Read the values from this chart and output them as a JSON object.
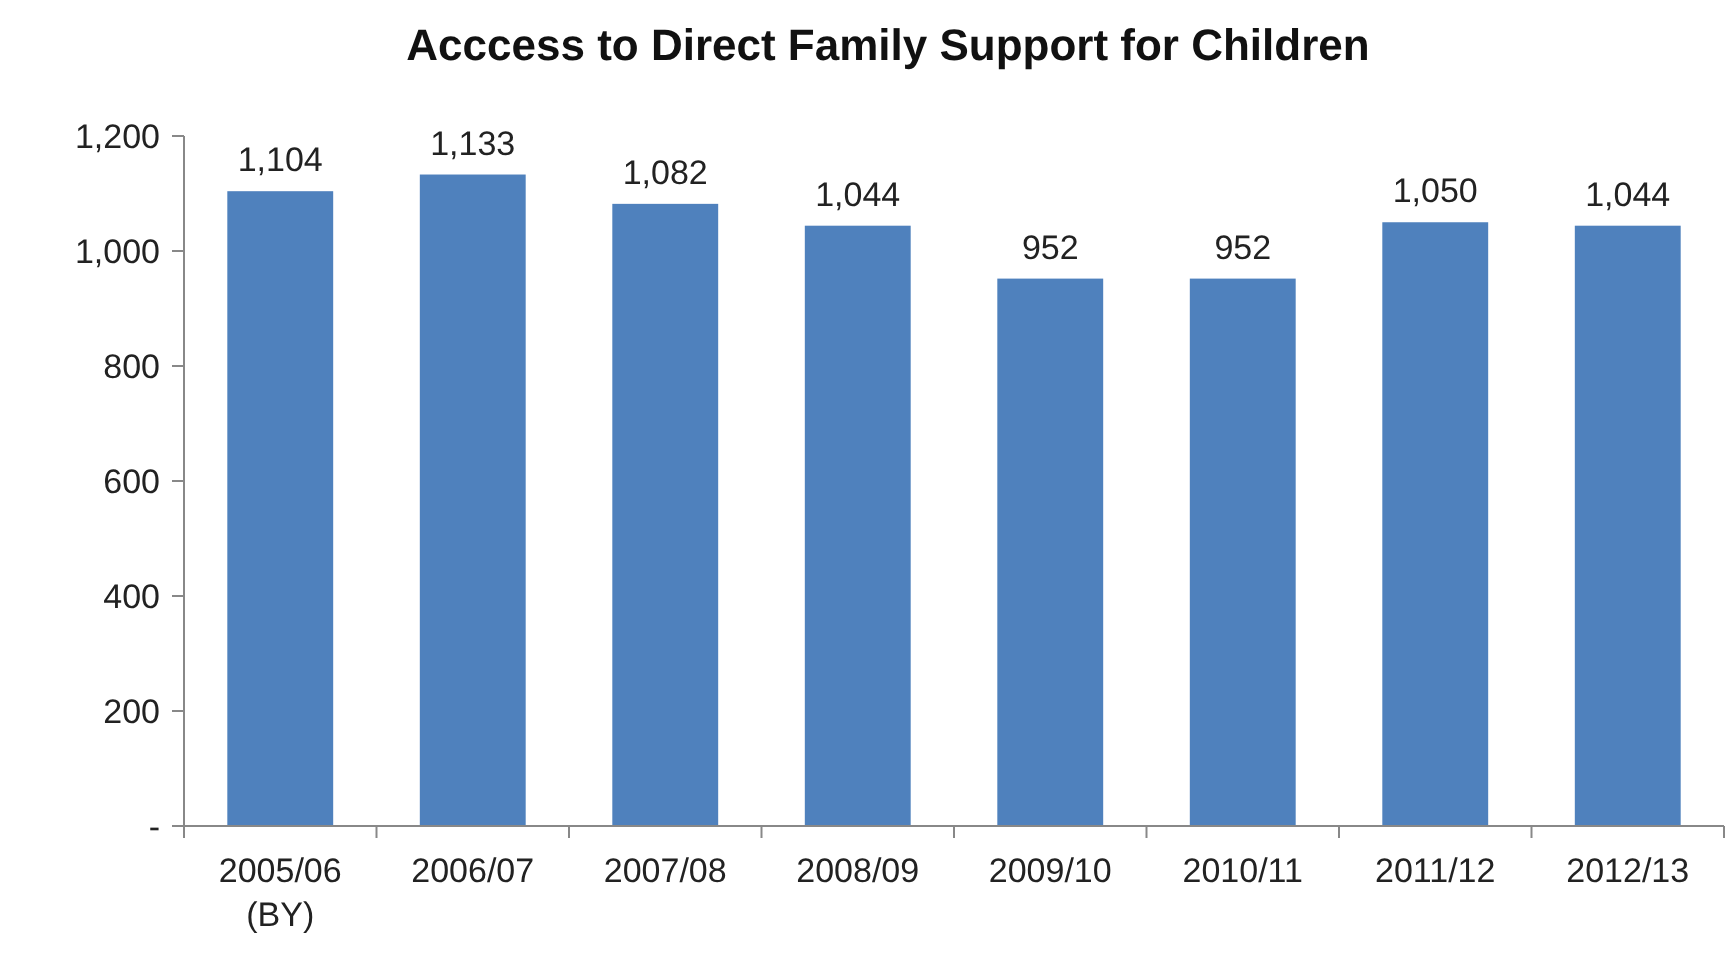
{
  "chart_data": {
    "type": "bar",
    "title": "Acccess to Direct Family Support  for Children",
    "categories": [
      "2005/06\n(BY)",
      "2006/07",
      "2007/08",
      "2008/09",
      "2009/10",
      "2010/11",
      "2011/12",
      "2012/13"
    ],
    "values": [
      1104,
      1133,
      1082,
      1044,
      952,
      952,
      1050,
      1044
    ],
    "value_labels": [
      "1,104",
      "1,133",
      "1,082",
      "1,044",
      "952",
      "952",
      "1,050",
      "1,044"
    ],
    "color": "#4f81bd",
    "grid": false,
    "ylim": [
      0,
      1200
    ],
    "yticks": [
      {
        "value": 0,
        "label": "-"
      },
      200,
      400,
      600,
      800,
      {
        "value": 1000,
        "label": "1,000"
      },
      {
        "value": 1200,
        "label": "1,200"
      }
    ]
  }
}
